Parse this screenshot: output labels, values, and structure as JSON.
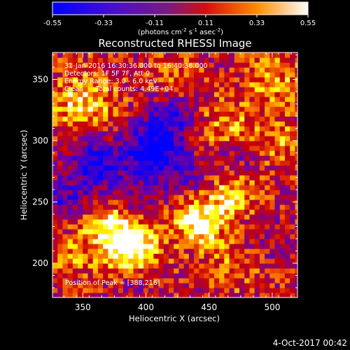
{
  "colorbar": {
    "ticks": [
      "-0.55",
      "-0.33",
      "-0.11",
      "0.11",
      "0.33",
      "0.55"
    ],
    "units": "(photons cm",
    "units_exp1": "-2",
    "units_mid": " s",
    "units_exp2": "-1",
    "units_end": " asec",
    "units_exp3": "-2",
    "units_close": ")"
  },
  "chart_data": {
    "type": "heatmap",
    "title": "Reconstructed RHESSI Image",
    "xlabel": "Heliocentric X (arcsec)",
    "ylabel": "Heliocentric Y (arcsec)",
    "xlim": [
      326,
      520
    ],
    "ylim": [
      172,
      372
    ],
    "x_ticks": [
      "350",
      "400",
      "450",
      "500"
    ],
    "y_ticks": [
      "200",
      "250",
      "300",
      "350"
    ],
    "value_range": [
      -0.55,
      0.55
    ],
    "colormap": [
      "#0000ff",
      "#6a00a8",
      "#cc0000",
      "#ff8000",
      "#ffff00",
      "#ffffff"
    ],
    "annotations": [
      "31-Jan-2016 16:30:36.000 to 16:40:36.000",
      "Detectors: 1F 5F 7F, Att 0",
      "Energy Range: 3.0 - 6.0 keV",
      "Clean      Total counts: 4.49E+04"
    ],
    "peak_label": "Position of Peak = [388,216]",
    "peak": [
      388,
      216
    ]
  },
  "footer_date": "4-Oct-2017 00:42"
}
